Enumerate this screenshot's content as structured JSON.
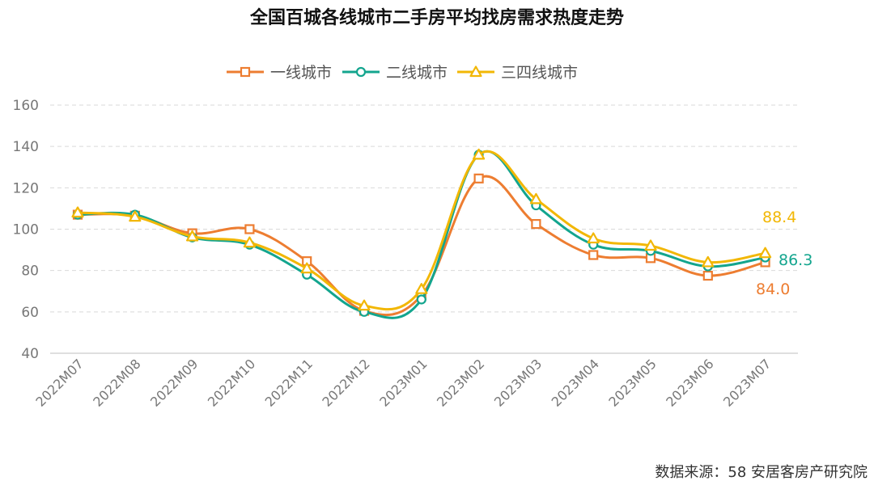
{
  "title": "全国百城各线城市二手房平均找房需求热度走势",
  "source": "数据来源：58 安居客房产研究院",
  "chart_data": {
    "type": "line",
    "categories": [
      "2022M07",
      "2022M08",
      "2022M09",
      "2022M10",
      "2022M11",
      "2022M12",
      "2023M01",
      "2023M02",
      "2023M03",
      "2023M04",
      "2023M05",
      "2023M06",
      "2023M07"
    ],
    "ylim": [
      40,
      160
    ],
    "yticks": [
      40,
      60,
      80,
      100,
      120,
      140,
      160
    ],
    "grid": true,
    "legend_position": "top-center",
    "series": [
      {
        "name": "一线城市",
        "color": "#ED7D31",
        "marker": "square",
        "values": [
          107,
          106.5,
          98,
          100,
          84.5,
          60.5,
          68,
          124.5,
          102.5,
          87.5,
          86,
          77.5,
          84.0
        ],
        "end_label": "84.0"
      },
      {
        "name": "二线城市",
        "color": "#13A58E",
        "marker": "circle",
        "values": [
          107,
          107,
          96,
          92.5,
          78,
          60,
          66,
          136,
          111.5,
          92.5,
          89.5,
          82,
          86.3
        ],
        "end_label": "86.3"
      },
      {
        "name": "三四线城市",
        "color": "#F2B705",
        "marker": "triangle",
        "values": [
          108,
          106,
          96.5,
          93.5,
          81,
          63,
          71,
          136,
          114.5,
          95.5,
          92,
          84,
          88.4
        ],
        "end_label": "88.4"
      }
    ]
  }
}
